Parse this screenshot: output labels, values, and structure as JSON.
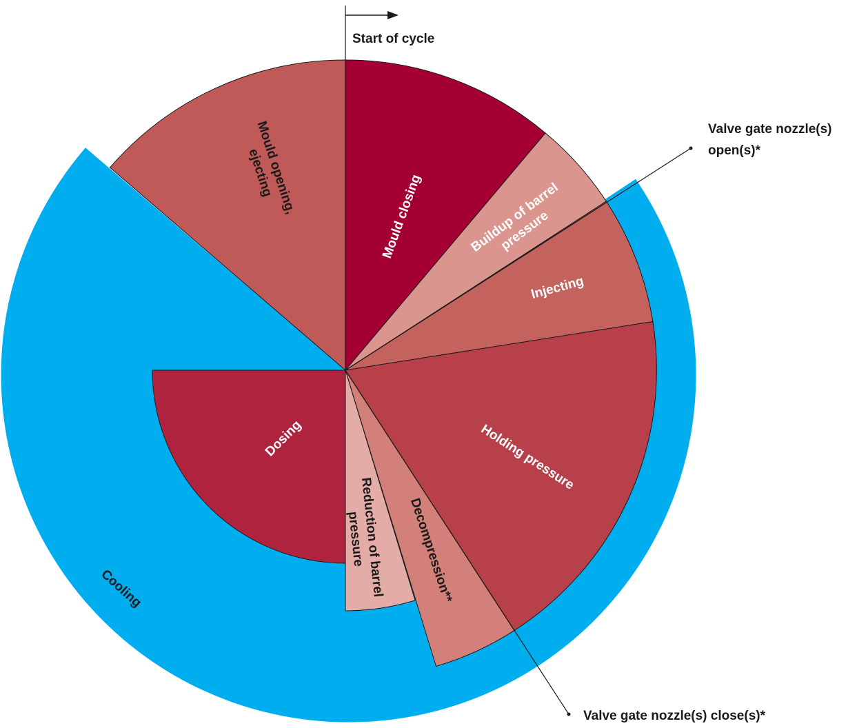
{
  "diagram": {
    "start_label": "Start of cycle",
    "valve_open_label_line1": "Valve gate nozzle(s)",
    "valve_open_label_line2": "open(s)*",
    "valve_close_label": "Valve gate nozzle(s) close(s)*",
    "colors": {
      "cooling": "#00aeef",
      "mould_closing": "#a50034",
      "buildup": "#d9958e",
      "injecting": "#c4625e",
      "holding": "#b7404b",
      "decompression": "#d3807a",
      "reduction": "#e3aca6",
      "dosing": "#b0233f",
      "mould_opening": "#bf5a58"
    },
    "segments": {
      "mould_closing": "Mould closing",
      "buildup_line1": "Buildup of barrel",
      "buildup_line2": "pressure",
      "injecting": "Injecting",
      "holding": "Holding pressure",
      "decompression": "Decompression**",
      "reduction_line1": "Reduction of barrel",
      "reduction_line2": "pressure",
      "dosing": "Dosing",
      "mould_opening_line1": "Mould opening,",
      "mould_opening_line2": "ejecting",
      "cooling": "Cooling"
    }
  }
}
